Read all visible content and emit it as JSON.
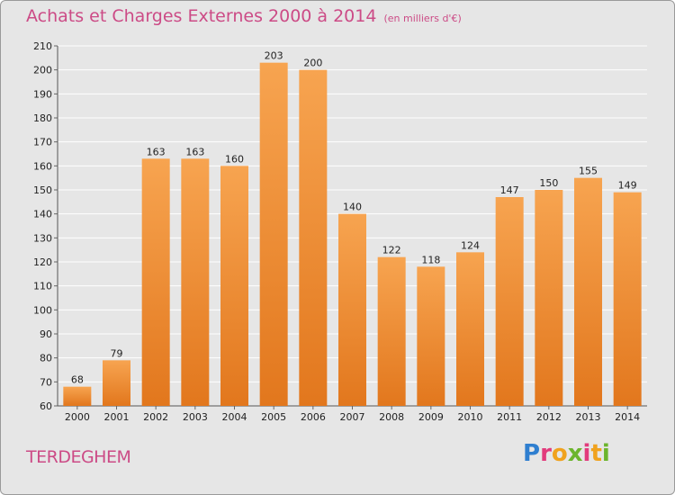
{
  "header": {
    "title": "Achats et Charges Externes 2000 à 2014",
    "unit": "(en milliers d'€)"
  },
  "footer": {
    "place": "TERDEGHEM",
    "logo_letters": [
      "P",
      "r",
      "o",
      "x",
      "i",
      "t",
      "i"
    ]
  },
  "colors": {
    "bar_light": "#f7a450",
    "bar_dark": "#e2771d",
    "title": "#cc4b86"
  },
  "chart_data": {
    "type": "bar",
    "title": "Achats et Charges Externes 2000 à 2014",
    "subtitle": "(en milliers d'€)",
    "categories": [
      "2000",
      "2001",
      "2002",
      "2003",
      "2004",
      "2005",
      "2006",
      "2007",
      "2008",
      "2009",
      "2010",
      "2011",
      "2012",
      "2013",
      "2014"
    ],
    "values": [
      68,
      79,
      163,
      163,
      160,
      203,
      200,
      140,
      122,
      118,
      124,
      147,
      150,
      155,
      149
    ],
    "ylim": [
      60,
      210
    ],
    "yticks": [
      60,
      70,
      80,
      90,
      100,
      110,
      120,
      130,
      140,
      150,
      160,
      170,
      180,
      190,
      200,
      210
    ],
    "grid": true,
    "legend": "none"
  }
}
